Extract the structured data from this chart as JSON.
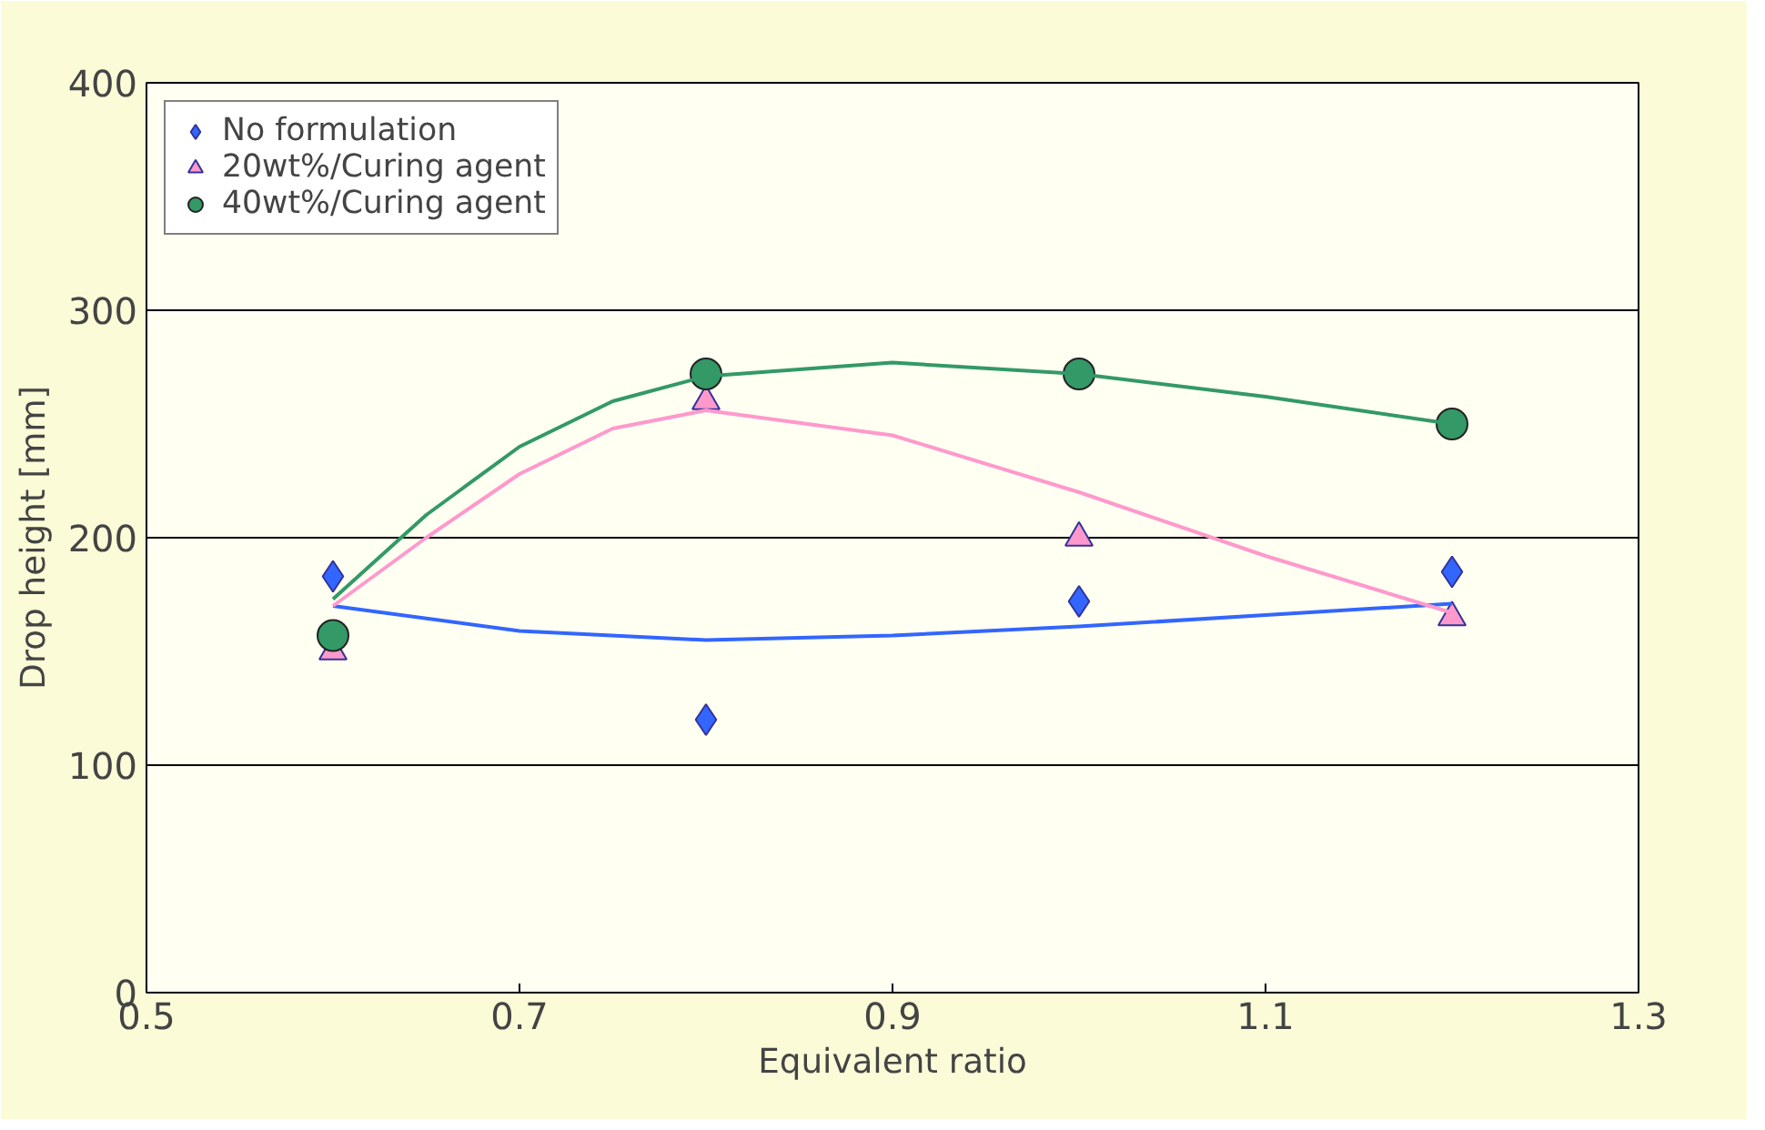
{
  "chart_data": {
    "type": "scatter",
    "xlabel": "Equivalent ratio",
    "ylabel": "Drop height [mm]",
    "xlim": [
      0.5,
      1.3
    ],
    "xticks": [
      0.5,
      0.7,
      0.9,
      1.1,
      1.3
    ],
    "ylim": [
      0,
      400
    ],
    "yticks": [
      0,
      100,
      200,
      300,
      400
    ],
    "grid": "y",
    "legend": "top left",
    "series": [
      {
        "name": "No formulation",
        "color": "#3366ff",
        "marker": "diamond",
        "x": [
          0.6,
          0.8,
          1.0,
          1.2
        ],
        "values": [
          183,
          120,
          172,
          185
        ]
      },
      {
        "name": "20wt%/Curing agent",
        "color": "#ff99cc",
        "marker": "triangle",
        "x": [
          0.6,
          0.8,
          1.0,
          1.2
        ],
        "values": [
          150,
          260,
          200,
          165
        ]
      },
      {
        "name": "40wt%/Curing agent",
        "color": "#339966",
        "marker": "circle",
        "x": [
          0.6,
          0.8,
          1.0,
          1.2
        ],
        "values": [
          157,
          272,
          272,
          250
        ]
      },
      {
        "type": "line",
        "color": "#3366ff",
        "x": [
          0.6,
          0.7,
          0.8,
          0.9,
          1.0,
          1.1,
          1.2
        ],
        "values": [
          170,
          159,
          155,
          157,
          161,
          166,
          171
        ]
      },
      {
        "type": "line",
        "color": "#ff99cc",
        "x": [
          0.6,
          0.65,
          0.7,
          0.75,
          0.8,
          0.9,
          1.0,
          1.1,
          1.2
        ],
        "values": [
          170,
          200,
          228,
          248,
          256,
          245,
          220,
          192,
          167
        ]
      },
      {
        "type": "line",
        "color": "#339966",
        "x": [
          0.6,
          0.65,
          0.7,
          0.75,
          0.8,
          0.9,
          1.0,
          1.1,
          1.2
        ],
        "values": [
          173,
          210,
          240,
          260,
          271,
          277,
          272,
          262,
          250
        ]
      }
    ]
  }
}
